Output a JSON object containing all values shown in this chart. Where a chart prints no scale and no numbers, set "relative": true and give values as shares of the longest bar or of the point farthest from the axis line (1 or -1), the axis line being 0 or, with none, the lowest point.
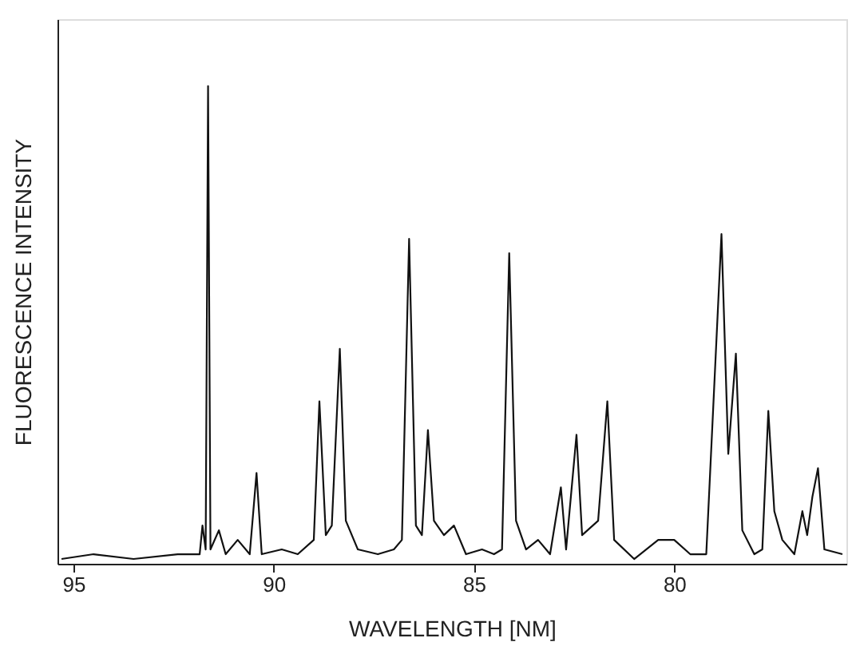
{
  "chart_data": {
    "type": "line",
    "relative": true,
    "xlabel": "WAVELENGTH [NM]",
    "ylabel": "FLUORESCENCE INTENSITY",
    "xlim": [
      95.4,
      75.7
    ],
    "xticks": [
      95,
      90,
      85,
      80
    ],
    "grid": false,
    "marker": "none",
    "line_style": "solid",
    "series": [
      {
        "color": "#111111",
        "x": [
          95.3,
          94.5,
          93.5,
          92.4,
          91.85,
          91.78,
          91.7,
          91.64,
          91.58,
          91.37,
          91.2,
          90.9,
          90.6,
          90.43,
          90.3,
          89.8,
          89.4,
          89.0,
          88.86,
          88.7,
          88.55,
          88.35,
          88.2,
          87.9,
          87.4,
          87.0,
          86.8,
          86.62,
          86.45,
          86.3,
          86.15,
          86.0,
          85.75,
          85.5,
          85.2,
          84.8,
          84.5,
          84.3,
          84.12,
          83.95,
          83.7,
          83.4,
          83.1,
          82.83,
          82.7,
          82.44,
          82.3,
          81.9,
          81.67,
          81.5,
          81.0,
          80.4,
          80.0,
          79.6,
          79.2,
          78.82,
          78.65,
          78.46,
          78.3,
          78.0,
          77.8,
          77.65,
          77.5,
          77.3,
          77.0,
          76.8,
          76.68,
          76.55,
          76.41,
          76.25,
          75.8
        ],
        "values": [
          0.01,
          0.02,
          0.01,
          0.02,
          0.02,
          0.08,
          0.03,
          1,
          0.03,
          0.07,
          0.02,
          0.05,
          0.02,
          0.19,
          0.02,
          0.03,
          0.02,
          0.05,
          0.34,
          0.06,
          0.08,
          0.45,
          0.09,
          0.03,
          0.02,
          0.03,
          0.05,
          0.68,
          0.08,
          0.06,
          0.28,
          0.09,
          0.06,
          0.08,
          0.02,
          0.03,
          0.02,
          0.03,
          0.65,
          0.09,
          0.03,
          0.05,
          0.02,
          0.16,
          0.03,
          0.27,
          0.06,
          0.09,
          0.34,
          0.05,
          0.01,
          0.05,
          0.05,
          0.02,
          0.02,
          0.69,
          0.23,
          0.44,
          0.07,
          0.02,
          0.03,
          0.32,
          0.11,
          0.05,
          0.02,
          0.11,
          0.06,
          0.14,
          0.2,
          0.03,
          0.02
        ]
      }
    ]
  }
}
